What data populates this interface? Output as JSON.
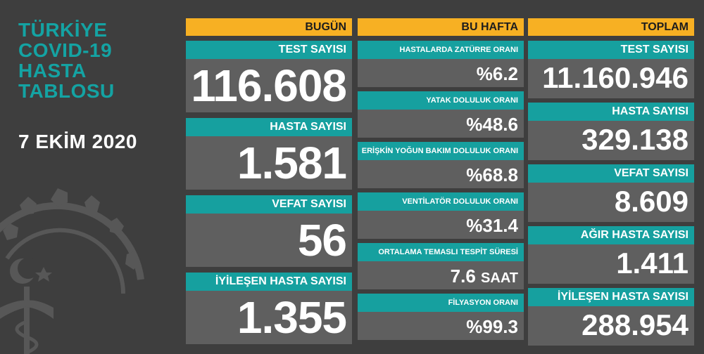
{
  "title_lines": [
    "TÜRKİYE",
    "COVID-19",
    "HASTA",
    "TABLOSU"
  ],
  "date": "7 EKİM 2020",
  "colors": {
    "background": "#3e3e3e",
    "header": "#f7b023",
    "label": "#16a09f",
    "card": "#5f5f5f",
    "title": "#14a3a3"
  },
  "today": {
    "header": "BUGÜN",
    "cards": [
      {
        "label": "TEST SAYISI",
        "value": "116.608"
      },
      {
        "label": "HASTA SAYISI",
        "value": "1.581"
      },
      {
        "label": "VEFAT SAYISI",
        "value": "56"
      },
      {
        "label": "İYİLEŞEN HASTA SAYISI",
        "value": "1.355"
      }
    ]
  },
  "week": {
    "header": "BU HAFTA",
    "cards": [
      {
        "label": "HASTALARDA ZATÜRRE ORANI",
        "value": "%6.2"
      },
      {
        "label": "YATAK DOLULUK ORANI",
        "value": "%48.6"
      },
      {
        "label": "ERİŞKİN YOĞUN BAKIM DOLULUK ORANI",
        "value": "%68.8"
      },
      {
        "label": "VENTİLATÖR DOLULUK ORANI",
        "value": "%31.4"
      },
      {
        "label": "ORTALAMA TEMASLI TESPİT SÜRESİ",
        "value": "7.6",
        "unit": "SAAT"
      },
      {
        "label": "FİLYASYON ORANI",
        "value": "%99.3"
      }
    ]
  },
  "total": {
    "header": "TOPLAM",
    "cards": [
      {
        "label": "TEST SAYISI",
        "value": "11.160.946"
      },
      {
        "label": "HASTA SAYISI",
        "value": "329.138"
      },
      {
        "label": "VEFAT SAYISI",
        "value": "8.609"
      },
      {
        "label": "AĞIR HASTA SAYISI",
        "value": "1.411"
      },
      {
        "label": "İYİLEŞEN HASTA SAYISI",
        "value": "288.954"
      }
    ]
  }
}
